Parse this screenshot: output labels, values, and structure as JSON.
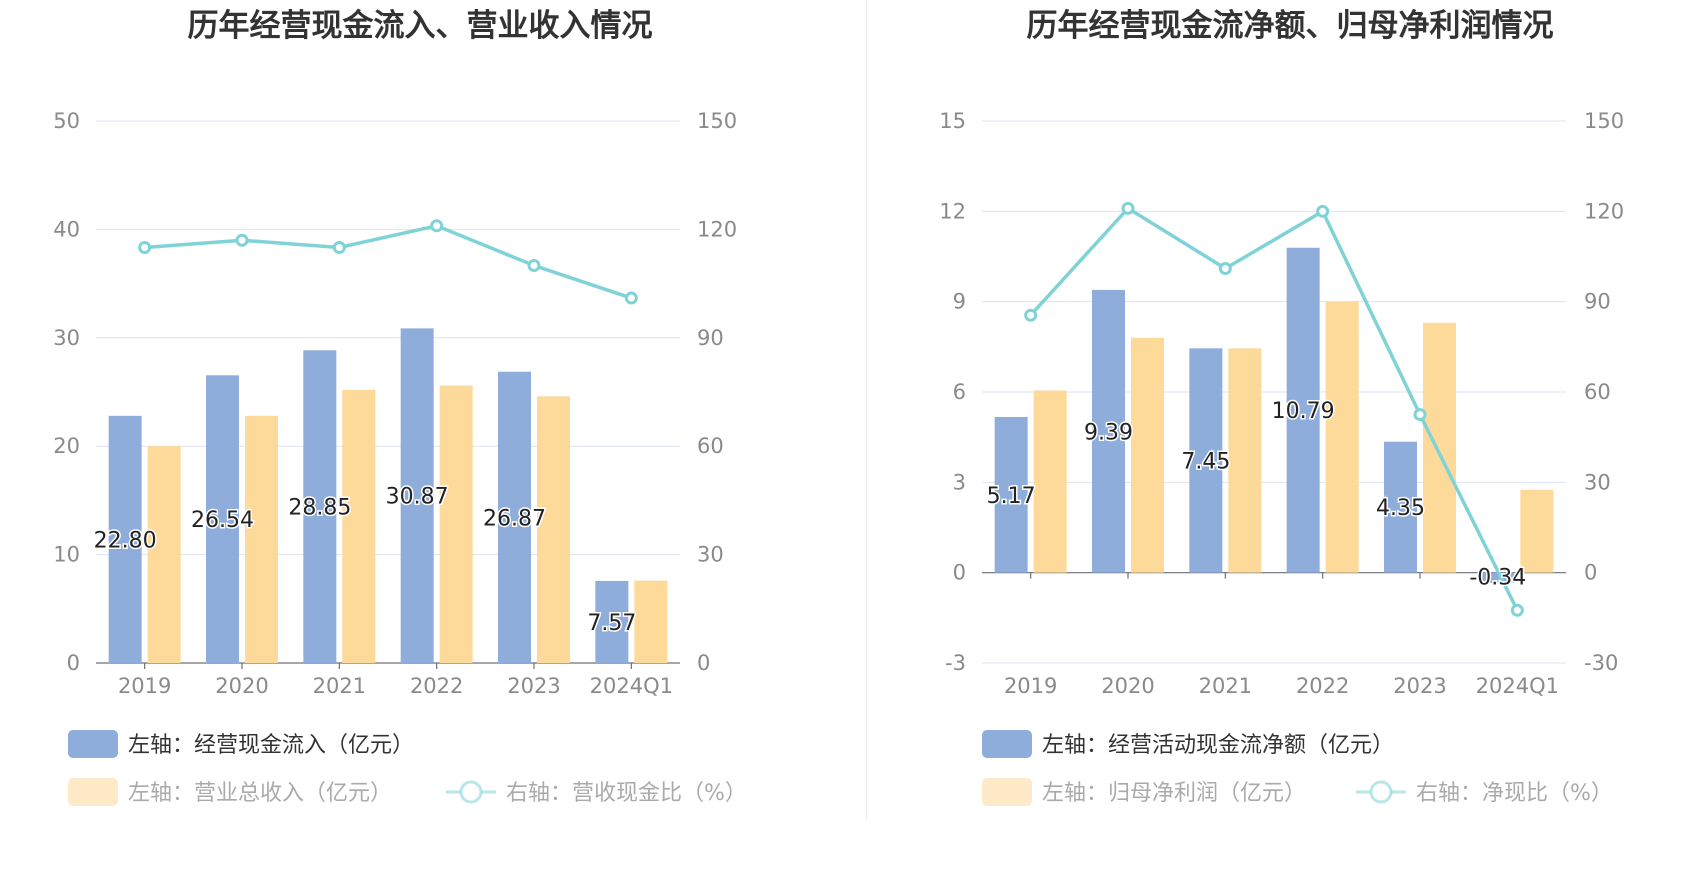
{
  "colors": {
    "bar_left": "#8eaddb",
    "bar_right": "#fdd99a",
    "line": "#7fd3d6",
    "grid": "#dde3f0",
    "axis_text": "#8a8a8a",
    "title": "#333333",
    "legend_text": "#333333",
    "legend_text_dim": "#aaaaaa"
  },
  "chart_data": [
    {
      "type": "bar",
      "title": "历年经营现金流入、营业收入情况",
      "categories": [
        "2019",
        "2020",
        "2021",
        "2022",
        "2023",
        "2024Q1"
      ],
      "left_axis": {
        "ticks": [
          "0",
          "10",
          "20",
          "30",
          "40",
          "50"
        ],
        "ylim": [
          0,
          50
        ]
      },
      "right_axis": {
        "ticks": [
          "0",
          "30",
          "60",
          "90",
          "120",
          "150"
        ],
        "ylim": [
          0,
          150
        ]
      },
      "grid": true,
      "series": [
        {
          "name": "左轴：经营现金流入（亿元）",
          "type": "bar",
          "axis": "left",
          "values": [
            22.8,
            26.54,
            28.85,
            30.87,
            26.87,
            7.57
          ],
          "labels": [
            "22.80",
            "26.54",
            "28.85",
            "30.87",
            "26.87",
            "7.57"
          ]
        },
        {
          "name": "左轴：营业总收入（亿元）",
          "type": "bar",
          "axis": "left",
          "values": [
            20.0,
            22.8,
            25.2,
            25.6,
            24.6,
            7.6
          ]
        },
        {
          "name": "右轴：营收现金比（%）",
          "type": "line",
          "axis": "right",
          "values": [
            115,
            117,
            115,
            121,
            110,
            101
          ]
        }
      ],
      "legend": {
        "placement": "bottom-left"
      }
    },
    {
      "type": "bar",
      "title": "历年经营现金流净额、归母净利润情况",
      "categories": [
        "2019",
        "2020",
        "2021",
        "2022",
        "2023",
        "2024Q1"
      ],
      "left_axis": {
        "ticks": [
          "-3",
          "0",
          "3",
          "6",
          "9",
          "12",
          "15"
        ],
        "ylim": [
          -3,
          15
        ]
      },
      "right_axis": {
        "ticks": [
          "-30",
          "0",
          "30",
          "60",
          "90",
          "120",
          "150"
        ],
        "ylim": [
          -30,
          150
        ]
      },
      "grid": true,
      "series": [
        {
          "name": "左轴：经营活动现金流净额（亿元）",
          "type": "bar",
          "axis": "left",
          "values": [
            5.17,
            9.39,
            7.45,
            10.79,
            4.35,
            -0.34
          ],
          "labels": [
            "5.17",
            "9.39",
            "7.45",
            "10.79",
            "4.35",
            "-0.34"
          ]
        },
        {
          "name": "左轴：归母净利润（亿元）",
          "type": "bar",
          "axis": "left",
          "values": [
            6.05,
            7.8,
            7.45,
            9.0,
            8.3,
            2.75
          ]
        },
        {
          "name": "右轴：净现比（%）",
          "type": "line",
          "axis": "right",
          "values": [
            85.5,
            121,
            101,
            120,
            52.5,
            -12.5
          ]
        }
      ],
      "legend": {
        "placement": "bottom-left"
      }
    }
  ]
}
